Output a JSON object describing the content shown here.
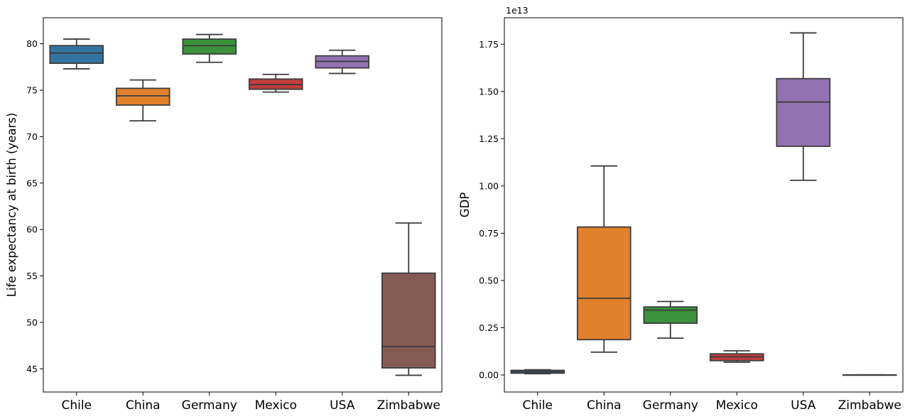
{
  "chart_data": [
    {
      "type": "box",
      "title": "",
      "xlabel": "",
      "ylabel": "Life expectancy at birth (years)",
      "ylim": [
        42.5,
        82.8
      ],
      "yticks": [
        45,
        50,
        55,
        60,
        65,
        70,
        75,
        80
      ],
      "ytick_labels": [
        "45",
        "50",
        "55",
        "60",
        "65",
        "70",
        "75",
        "80"
      ],
      "categories": [
        "Chile",
        "China",
        "Germany",
        "Mexico",
        "USA",
        "Zimbabwe"
      ],
      "boxes": [
        {
          "category": "Chile",
          "whisker_low": 77.3,
          "q1": 77.9,
          "median": 79.0,
          "q3": 79.8,
          "whisker_high": 80.5,
          "color": "#3274a1"
        },
        {
          "category": "China",
          "whisker_low": 71.7,
          "q1": 73.4,
          "median": 74.4,
          "q3": 75.2,
          "whisker_high": 76.1,
          "color": "#e1812c"
        },
        {
          "category": "Germany",
          "whisker_low": 78.0,
          "q1": 78.9,
          "median": 79.8,
          "q3": 80.5,
          "whisker_high": 81.0,
          "color": "#3a923a"
        },
        {
          "category": "Mexico",
          "whisker_low": 74.8,
          "q1": 75.1,
          "median": 75.6,
          "q3": 76.2,
          "whisker_high": 76.7,
          "color": "#c03d3e"
        },
        {
          "category": "USA",
          "whisker_low": 76.8,
          "q1": 77.4,
          "median": 78.1,
          "q3": 78.7,
          "whisker_high": 79.3,
          "color": "#9372b2"
        },
        {
          "category": "Zimbabwe",
          "whisker_low": 44.3,
          "q1": 45.1,
          "median": 47.4,
          "q3": 55.3,
          "whisker_high": 60.7,
          "color": "#845b53"
        }
      ]
    },
    {
      "type": "box",
      "title": "",
      "xlabel": "",
      "ylabel": "GDP",
      "offset_label": "1e13",
      "ylim": [
        -0.09,
        1.89
      ],
      "yticks": [
        0.0,
        0.25,
        0.5,
        0.75,
        1.0,
        1.25,
        1.5,
        1.75
      ],
      "ytick_labels": [
        "0.00",
        "0.25",
        "0.50",
        "0.75",
        "1.00",
        "1.25",
        "1.50",
        "1.75"
      ],
      "categories": [
        "Chile",
        "China",
        "Germany",
        "Mexico",
        "USA",
        "Zimbabwe"
      ],
      "boxes": [
        {
          "category": "Chile",
          "whisker_low": 0.0069,
          "q1": 0.0097,
          "median": 0.0172,
          "q3": 0.0247,
          "whisker_high": 0.0278,
          "color": "#3274a1"
        },
        {
          "category": "China",
          "whisker_low": 0.121,
          "q1": 0.187,
          "median": 0.406,
          "q3": 0.783,
          "whisker_high": 1.106,
          "color": "#e1812c"
        },
        {
          "category": "Germany",
          "whisker_low": 0.195,
          "q1": 0.274,
          "median": 0.343,
          "q3": 0.36,
          "whisker_high": 0.389,
          "color": "#3a923a"
        },
        {
          "category": "Mexico",
          "whisker_low": 0.068,
          "q1": 0.076,
          "median": 0.096,
          "q3": 0.112,
          "whisker_high": 0.128,
          "color": "#c03d3e"
        },
        {
          "category": "USA",
          "whisker_low": 1.03,
          "q1": 1.21,
          "median": 1.444,
          "q3": 1.568,
          "whisker_high": 1.81,
          "color": "#9372b2"
        },
        {
          "category": "Zimbabwe",
          "whisker_low": 0.0004,
          "q1": 0.0005,
          "median": 0.0006,
          "q3": 0.0008,
          "whisker_high": 0.0011,
          "color": "#845b53"
        }
      ]
    }
  ]
}
